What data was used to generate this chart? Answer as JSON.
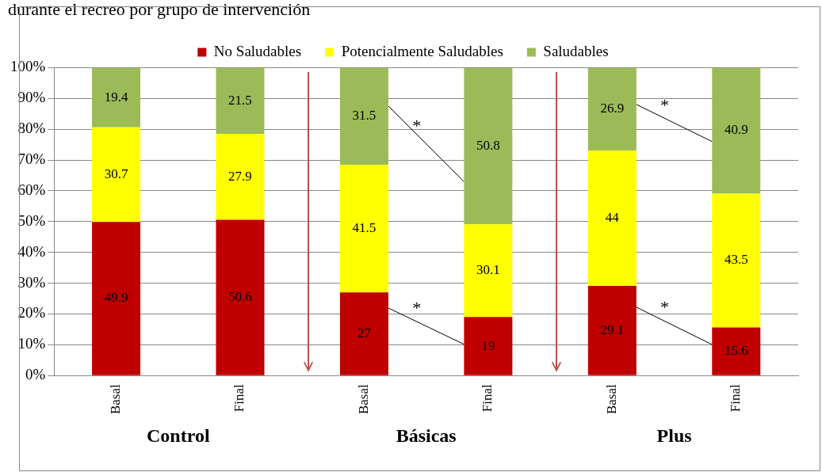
{
  "chart_data": {
    "type": "bar",
    "title": "durante el recreo por grupo de intervención",
    "categories": [
      "Basal",
      "Final",
      "Basal",
      "Final",
      "Basal",
      "Final"
    ],
    "stacked": true,
    "data_labels": true,
    "grid": "y",
    "legend": "top",
    "ylim": [
      0,
      100
    ],
    "yticks": [
      {
        "value": 0,
        "label": "0%"
      },
      {
        "value": 10,
        "label": "10%"
      },
      {
        "value": 20,
        "label": "20%"
      },
      {
        "value": 30,
        "label": "30%"
      },
      {
        "value": 40,
        "label": "40%"
      },
      {
        "value": 50,
        "label": "50%"
      },
      {
        "value": 60,
        "label": "60%"
      },
      {
        "value": 70,
        "label": "70%"
      },
      {
        "value": 80,
        "label": "80%"
      },
      {
        "value": 90,
        "label": "90%"
      },
      {
        "value": 100,
        "label": "100%"
      }
    ],
    "series": [
      {
        "name": "No Saludables",
        "color": "#c00000",
        "values": [
          49.9,
          50.6,
          27,
          19,
          29.1,
          15.6
        ]
      },
      {
        "name": "Potencialmente Saludables",
        "color": "#ffff00",
        "values": [
          30.7,
          27.9,
          41.5,
          30.1,
          44,
          43.5
        ]
      },
      {
        "name": "Saludables",
        "color": "#9bbb59",
        "values": [
          19.4,
          21.5,
          31.5,
          50.8,
          26.9,
          40.9
        ]
      }
    ],
    "annotations": [
      "Control",
      "Básicas",
      "Plus",
      "*",
      "*",
      "*",
      "*"
    ]
  }
}
